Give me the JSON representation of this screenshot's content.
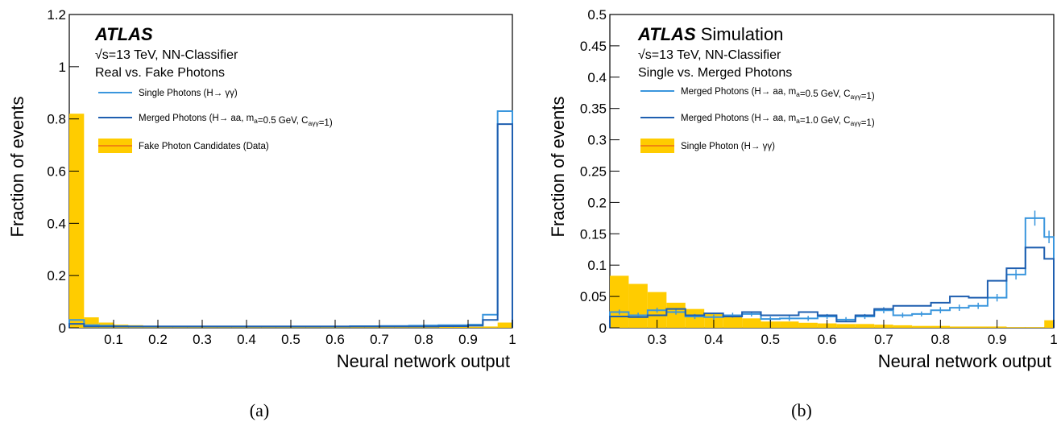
{
  "chart_data": [
    {
      "type": "histogram",
      "panel_label": "(a)",
      "title": "",
      "xlabel": "Neural network output",
      "ylabel": "Fraction of events",
      "xlim": [
        0.0,
        1.0
      ],
      "ylim": [
        0.0,
        1.2
      ],
      "x_ticks": [
        {
          "v": 0.1,
          "label": "0.1"
        },
        {
          "v": 0.2,
          "label": "0.2"
        },
        {
          "v": 0.3,
          "label": "0.3"
        },
        {
          "v": 0.4,
          "label": "0.4"
        },
        {
          "v": 0.5,
          "label": "0.5"
        },
        {
          "v": 0.6,
          "label": "0.6"
        },
        {
          "v": 0.7,
          "label": "0.7"
        },
        {
          "v": 0.8,
          "label": "0.8"
        },
        {
          "v": 0.9,
          "label": "0.9"
        },
        {
          "v": 1.0,
          "label": "1"
        }
      ],
      "y_ticks": [
        {
          "v": 0,
          "label": "0"
        },
        {
          "v": 0.2,
          "label": "0.2"
        },
        {
          "v": 0.4,
          "label": "0.4"
        },
        {
          "v": 0.6,
          "label": "0.6"
        },
        {
          "v": 0.8,
          "label": "0.8"
        },
        {
          "v": 1.0,
          "label": "1"
        },
        {
          "v": 1.2,
          "label": "1.2"
        }
      ],
      "bin_edges": [
        0.0,
        0.0333,
        0.0667,
        0.1,
        0.1333,
        0.1667,
        0.2,
        0.2333,
        0.2667,
        0.3,
        0.3333,
        0.3667,
        0.4,
        0.4333,
        0.4667,
        0.5,
        0.5333,
        0.5667,
        0.6,
        0.6333,
        0.6667,
        0.7,
        0.7333,
        0.7667,
        0.8,
        0.8333,
        0.8667,
        0.9,
        0.9333,
        0.9667,
        1.0
      ],
      "atlas_label": {
        "bold": "ATLAS",
        "suffix": ""
      },
      "info_lines": [
        "√s=13 TeV, NN-Classifier",
        "Real vs. Fake Photons"
      ],
      "series": [
        {
          "name": "Single Photons (H→ γγ)",
          "style": "step-errors",
          "color": "#3a96dd",
          "values": [
            0.03,
            0.01,
            0.008,
            0.006,
            0.005,
            0.005,
            0.005,
            0.005,
            0.005,
            0.005,
            0.005,
            0.005,
            0.005,
            0.005,
            0.005,
            0.005,
            0.005,
            0.005,
            0.005,
            0.006,
            0.006,
            0.007,
            0.007,
            0.008,
            0.009,
            0.01,
            0.01,
            0.012,
            0.05,
            0.83
          ]
        },
        {
          "name": "Merged Photons (H→ aa, m_a=0.5 GeV, C_aγγ=1)",
          "style": "step",
          "color": "#1f5fb0",
          "values": [
            0.015,
            0.005,
            0.005,
            0.005,
            0.005,
            0.005,
            0.005,
            0.005,
            0.005,
            0.005,
            0.005,
            0.005,
            0.005,
            0.005,
            0.005,
            0.005,
            0.005,
            0.005,
            0.005,
            0.005,
            0.005,
            0.005,
            0.005,
            0.005,
            0.005,
            0.006,
            0.006,
            0.008,
            0.03,
            0.78
          ]
        },
        {
          "name": "Fake Photon Candidates (Data)",
          "style": "filled",
          "color": "#ffcc00",
          "values": [
            0.82,
            0.04,
            0.02,
            0.012,
            0.01,
            0.008,
            0.007,
            0.006,
            0.005,
            0.005,
            0.004,
            0.004,
            0.004,
            0.004,
            0.003,
            0.003,
            0.003,
            0.003,
            0.003,
            0.003,
            0.003,
            0.003,
            0.003,
            0.003,
            0.003,
            0.003,
            0.003,
            0.004,
            0.005,
            0.02
          ]
        }
      ]
    },
    {
      "type": "histogram",
      "panel_label": "(b)",
      "title": "",
      "xlabel": "Neural network output",
      "ylabel": "Fraction of events",
      "xlim": [
        0.2167,
        1.0
      ],
      "ylim": [
        0.0,
        0.5
      ],
      "x_ticks": [
        {
          "v": 0.3,
          "label": "0.3"
        },
        {
          "v": 0.4,
          "label": "0.4"
        },
        {
          "v": 0.5,
          "label": "0.5"
        },
        {
          "v": 0.6,
          "label": "0.6"
        },
        {
          "v": 0.7,
          "label": "0.7"
        },
        {
          "v": 0.8,
          "label": "0.8"
        },
        {
          "v": 0.9,
          "label": "0.9"
        },
        {
          "v": 1.0,
          "label": "1"
        }
      ],
      "y_ticks": [
        {
          "v": 0,
          "label": "0"
        },
        {
          "v": 0.05,
          "label": "0.05"
        },
        {
          "v": 0.1,
          "label": "0.1"
        },
        {
          "v": 0.15,
          "label": "0.15"
        },
        {
          "v": 0.2,
          "label": "0.2"
        },
        {
          "v": 0.25,
          "label": "0.25"
        },
        {
          "v": 0.3,
          "label": "0.3"
        },
        {
          "v": 0.35,
          "label": "0.35"
        },
        {
          "v": 0.4,
          "label": "0.4"
        },
        {
          "v": 0.45,
          "label": "0.45"
        },
        {
          "v": 0.5,
          "label": "0.5"
        }
      ],
      "bin_edges": [
        0.2167,
        0.25,
        0.2833,
        0.3167,
        0.35,
        0.3833,
        0.4167,
        0.45,
        0.4833,
        0.5167,
        0.55,
        0.5833,
        0.6167,
        0.65,
        0.6833,
        0.7167,
        0.75,
        0.7833,
        0.8167,
        0.85,
        0.8833,
        0.9167,
        0.95,
        0.9833,
        1.0
      ],
      "atlas_label": {
        "bold": "ATLAS",
        "suffix": "Simulation"
      },
      "info_lines": [
        "√s=13 TeV, NN-Classifier",
        "Single vs. Merged Photons"
      ],
      "series": [
        {
          "name": "Merged Photons (H→ aa, m_a=0.5 GeV, C_aγγ=1)",
          "style": "step-errors",
          "color": "#3a96dd",
          "values": [
            0.025,
            0.02,
            0.028,
            0.025,
            0.018,
            0.017,
            0.02,
            0.022,
            0.014,
            0.015,
            0.015,
            0.018,
            0.013,
            0.018,
            0.028,
            0.02,
            0.022,
            0.028,
            0.032,
            0.035,
            0.048,
            0.085,
            0.175,
            0.145
          ],
          "errors": [
            0.004,
            0.004,
            0.004,
            0.004,
            0.004,
            0.004,
            0.004,
            0.004,
            0.004,
            0.004,
            0.004,
            0.004,
            0.004,
            0.004,
            0.005,
            0.004,
            0.004,
            0.005,
            0.005,
            0.005,
            0.006,
            0.008,
            0.012,
            0.01
          ]
        },
        {
          "name": "Merged Photons (H→ aa, m_a=1.0 GeV, C_aγγ=1)",
          "style": "step",
          "color": "#1f5fb0",
          "values": [
            0.018,
            0.017,
            0.02,
            0.03,
            0.02,
            0.023,
            0.018,
            0.025,
            0.02,
            0.02,
            0.025,
            0.02,
            0.01,
            0.02,
            0.03,
            0.035,
            0.035,
            0.04,
            0.05,
            0.048,
            0.075,
            0.095,
            0.128,
            0.11
          ]
        },
        {
          "name": "Single Photon (H→ γγ)",
          "style": "filled",
          "color": "#ffcc00",
          "values": [
            0.083,
            0.07,
            0.057,
            0.04,
            0.03,
            0.022,
            0.018,
            0.015,
            0.01,
            0.01,
            0.008,
            0.007,
            0.006,
            0.006,
            0.005,
            0.004,
            0.003,
            0.003,
            0.002,
            0.002,
            0.002,
            0.001,
            0.001,
            0.012
          ]
        }
      ]
    }
  ]
}
